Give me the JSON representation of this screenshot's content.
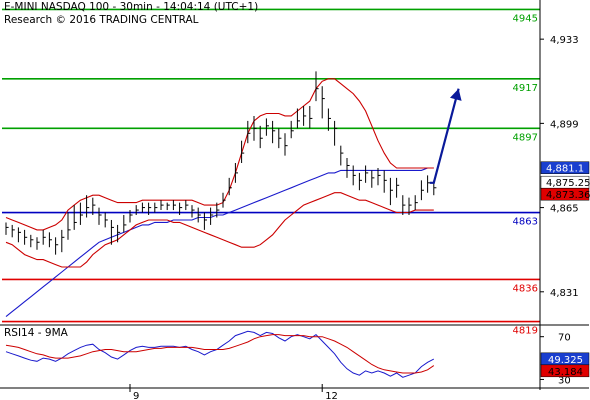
{
  "header": {
    "line1": "E-MINI NASDAQ 100 - 30min - 14:04:14 (UTC+1)",
    "line2": "Research © 2016 TRADING CENTRAL"
  },
  "rsi_header": "RSI14 - 9MA",
  "chart_data": [
    {
      "type": "line",
      "panel": "price",
      "title": "E-MINI NASDAQ 100 - 30min",
      "x_ticks": [
        {
          "label": "9",
          "bar": 20
        },
        {
          "label": "12",
          "bar": 51
        }
      ],
      "yticks": [
        4933,
        4899,
        4865,
        4831
      ],
      "ylim": [
        4818,
        4948
      ],
      "levels": [
        {
          "label": "4945",
          "value": 4945,
          "color": "#00a000"
        },
        {
          "label": "4917",
          "value": 4917,
          "color": "#00a000"
        },
        {
          "label": "4897",
          "value": 4897,
          "color": "#00a000"
        },
        {
          "label": "4863",
          "value": 4863,
          "color": "#0000c0"
        },
        {
          "label": "4836",
          "value": 4836,
          "color": "#e00000"
        },
        {
          "label": "4819",
          "value": 4819,
          "color": "#e00000"
        }
      ],
      "price_tags": [
        {
          "label": "4,881.1",
          "value": 4881.1,
          "bg": "#1a3fcf",
          "fg": "#ffffff"
        },
        {
          "label": "4,875.25",
          "value": 4875.25,
          "bg": "#ffffff",
          "fg": "#000000"
        },
        {
          "label": "4,873.36",
          "value": 4873.36,
          "bg": "#e00000",
          "fg": "#000000"
        }
      ],
      "series": [
        {
          "id": "price",
          "style": "hlc-bars",
          "color": "#000000",
          "close": [
            4857,
            4856,
            4855,
            4853,
            4852,
            4851,
            4853,
            4852,
            4850,
            4853,
            4856,
            4859,
            4862,
            4865,
            4866,
            4862,
            4860,
            4857,
            4855,
            4858,
            4862,
            4864,
            4865,
            4865,
            4865,
            4866,
            4866,
            4866,
            4865,
            4866,
            4864,
            4862,
            4860,
            4862,
            4864,
            4868,
            4873,
            4879,
            4887,
            4895,
            4897,
            4893,
            4898,
            4896,
            4893,
            4890,
            4896,
            4900,
            4902,
            4901,
            4913,
            4909,
            4901,
            4897,
            4887,
            4882,
            4878,
            4876,
            4879,
            4877,
            4878,
            4876,
            4872,
            4874,
            4866,
            4866,
            4867,
            4872,
            4875,
            4873
          ],
          "high": [
            4859,
            4858,
            4857,
            4856,
            4854,
            4853,
            4856,
            4855,
            4853,
            4856,
            4863,
            4866,
            4867,
            4870,
            4869,
            4865,
            4863,
            4860,
            4858,
            4862,
            4864,
            4866,
            4867,
            4867,
            4867,
            4868,
            4867,
            4868,
            4867,
            4868,
            4866,
            4865,
            4863,
            4865,
            4867,
            4871,
            4877,
            4883,
            4892,
            4900,
            4902,
            4898,
            4901,
            4900,
            4897,
            4895,
            4900,
            4905,
            4906,
            4906,
            4920,
            4914,
            4905,
            4900,
            4890,
            4885,
            4882,
            4879,
            4882,
            4880,
            4881,
            4880,
            4877,
            4877,
            4870,
            4869,
            4870,
            4876,
            4878,
            4876
          ],
          "low": [
            4854,
            4853,
            4851,
            4850,
            4849,
            4848,
            4850,
            4849,
            4846,
            4847,
            4852,
            4856,
            4858,
            4861,
            4862,
            4858,
            4857,
            4850,
            4851,
            4855,
            4859,
            4862,
            4863,
            4862,
            4863,
            4864,
            4864,
            4864,
            4862,
            4864,
            4861,
            4859,
            4856,
            4858,
            4861,
            4865,
            4870,
            4875,
            4883,
            4891,
            4892,
            4889,
            4894,
            4891,
            4889,
            4886,
            4893,
            4897,
            4898,
            4897,
            4908,
            4901,
            4896,
            4890,
            4882,
            4877,
            4874,
            4872,
            4875,
            4873,
            4874,
            4871,
            4866,
            4869,
            4862,
            4862,
            4864,
            4868,
            4871,
            4870
          ]
        },
        {
          "id": "ma",
          "style": "line",
          "color": "#1a1acc",
          "values": [
            4821,
            4823,
            4825,
            4827,
            4829,
            4831,
            4833,
            4835,
            4837,
            4839,
            4841,
            4843,
            4845,
            4847,
            4849,
            4851,
            4852,
            4853,
            4854,
            4855,
            4856,
            4857,
            4858,
            4858,
            4859,
            4859,
            4859,
            4860,
            4860,
            4860,
            4860,
            4861,
            4861,
            4861,
            4862,
            4862,
            4863,
            4864,
            4865,
            4866,
            4867,
            4868,
            4869,
            4870,
            4871,
            4872,
            4873,
            4874,
            4875,
            4876,
            4877,
            4878,
            4879,
            4879,
            4880,
            4880,
            4880,
            4880,
            4880,
            4880,
            4880,
            4880,
            4880,
            4880,
            4880,
            4880,
            4880,
            4880,
            4881,
            4881
          ]
        },
        {
          "id": "bb_upper",
          "style": "line",
          "color": "#cc0000",
          "values": [
            4861,
            4860,
            4859,
            4858,
            4857,
            4856,
            4856,
            4857,
            4858,
            4860,
            4864,
            4866,
            4868,
            4869,
            4870,
            4870,
            4869,
            4868,
            4867,
            4867,
            4867,
            4867,
            4868,
            4868,
            4868,
            4868,
            4868,
            4868,
            4868,
            4868,
            4868,
            4867,
            4866,
            4866,
            4866,
            4867,
            4872,
            4879,
            4887,
            4895,
            4900,
            4902,
            4903,
            4903,
            4903,
            4902,
            4902,
            4904,
            4906,
            4908,
            4913,
            4916,
            4917,
            4917,
            4915,
            4913,
            4911,
            4908,
            4904,
            4898,
            4892,
            4887,
            4883,
            4881,
            4881,
            4881,
            4881,
            4881,
            4881,
            4881
          ]
        },
        {
          "id": "bb_lower",
          "style": "line",
          "color": "#cc0000",
          "values": [
            4851,
            4850,
            4848,
            4846,
            4845,
            4844,
            4844,
            4843,
            4842,
            4841,
            4841,
            4841,
            4841,
            4843,
            4846,
            4848,
            4850,
            4851,
            4852,
            4854,
            4856,
            4858,
            4859,
            4860,
            4860,
            4860,
            4860,
            4859,
            4859,
            4858,
            4857,
            4856,
            4855,
            4854,
            4853,
            4852,
            4851,
            4850,
            4849,
            4849,
            4849,
            4850,
            4852,
            4854,
            4857,
            4860,
            4862,
            4864,
            4866,
            4867,
            4868,
            4869,
            4870,
            4871,
            4871,
            4870,
            4869,
            4868,
            4868,
            4867,
            4866,
            4865,
            4864,
            4863,
            4863,
            4863,
            4864,
            4864,
            4864,
            4864
          ]
        }
      ],
      "forecast_arrow": {
        "from_bar": 69,
        "from_value": 4875,
        "to_bar": 73,
        "to_value": 4913,
        "color": "#0a1a9a"
      }
    },
    {
      "type": "line",
      "panel": "rsi",
      "title": "RSI14 - 9MA",
      "yticks": [
        70,
        30
      ],
      "ylim": [
        22,
        80
      ],
      "price_tags": [
        {
          "label": "49.325",
          "value": 49.3,
          "bg": "#1a3fcf",
          "fg": "#ffffff"
        },
        {
          "label": "43.184",
          "value": 43.2,
          "bg": "#e00000",
          "fg": "#000000"
        }
      ],
      "series": [
        {
          "id": "rsi",
          "color": "#1a1acc",
          "values": [
            56,
            54,
            52,
            50,
            48,
            47,
            50,
            49,
            47,
            50,
            54,
            57,
            60,
            62,
            63,
            58,
            55,
            51,
            49,
            53,
            57,
            60,
            61,
            60,
            60,
            61,
            61,
            61,
            60,
            61,
            58,
            56,
            53,
            56,
            58,
            62,
            66,
            71,
            73,
            75,
            74,
            71,
            74,
            73,
            69,
            66,
            70,
            72,
            70,
            68,
            72,
            66,
            60,
            54,
            46,
            40,
            36,
            34,
            38,
            36,
            38,
            36,
            33,
            36,
            32,
            34,
            36,
            42,
            46,
            49
          ]
        },
        {
          "id": "rsi_ma",
          "color": "#cc0000",
          "values": [
            62,
            61,
            60,
            58,
            56,
            54,
            53,
            51,
            50,
            50,
            50,
            51,
            52,
            54,
            56,
            57,
            58,
            58,
            57,
            56,
            56,
            56,
            57,
            58,
            59,
            59,
            60,
            60,
            60,
            60,
            60,
            59,
            58,
            58,
            58,
            58,
            59,
            61,
            63,
            65,
            68,
            70,
            71,
            72,
            72,
            71,
            71,
            71,
            71,
            70,
            70,
            70,
            68,
            66,
            63,
            60,
            56,
            52,
            48,
            44,
            41,
            39,
            38,
            37,
            36,
            36,
            36,
            37,
            39,
            43
          ]
        }
      ]
    }
  ]
}
